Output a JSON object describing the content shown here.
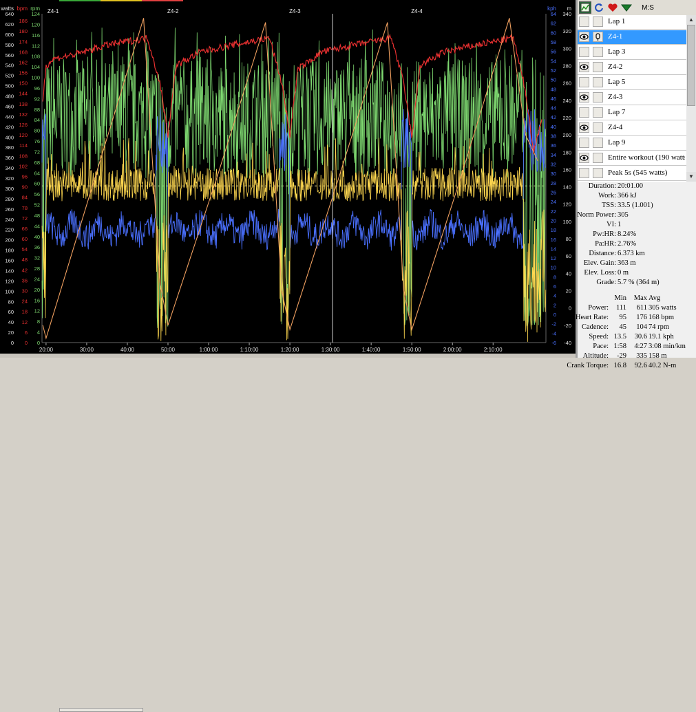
{
  "colors": {
    "watts": "#ffd850",
    "heart_rate": "#e83030",
    "cadence": "#7ed870",
    "speed": "#4a70ff",
    "elevation": "#f0a060",
    "axis_text": "#e0e0e0",
    "selection": "#3399ff"
  },
  "chart_data": {
    "type": "line",
    "x_label_format": "h:mm",
    "x_range_min": [
      19,
      2.3
    ],
    "x_ticks": [
      "20:00",
      "30:00",
      "40:00",
      "50:00",
      "1:00:00",
      "1:10:00",
      "1:20:00",
      "1:30:00",
      "1:40:00",
      "1:50:00",
      "2:00:00",
      "2:10:00"
    ],
    "interval_labels": [
      {
        "label": "Z4-1",
        "start_min": 20
      },
      {
        "label": "Z4-2",
        "start_min": 49.5
      },
      {
        "label": "Z4-3",
        "start_min": 79.5
      },
      {
        "label": "Z4-4",
        "start_min": 109.5
      }
    ],
    "cursor_min": 90.5,
    "reference_line": {
      "series": "watts",
      "value": 305
    },
    "axes": [
      {
        "id": "watts",
        "label": "watts",
        "side": "left",
        "min": 0,
        "max": 640,
        "step": 20
      },
      {
        "id": "bpm",
        "label": "bpm",
        "side": "left",
        "min": 0,
        "max": 190,
        "step": 6
      },
      {
        "id": "rpm",
        "label": "rpm",
        "side": "left",
        "min": 0,
        "max": 124,
        "step": 4
      },
      {
        "id": "kph",
        "label": "kph",
        "side": "right",
        "min": -6,
        "max": 64,
        "step": 2
      },
      {
        "id": "m",
        "label": "m",
        "side": "right",
        "min": -40,
        "max": 340,
        "step": 20
      }
    ],
    "series": [
      {
        "name": "Power",
        "axis": "watts",
        "note": "noisy ~305 W during intervals, dropping to ~0-100 W in recoveries"
      },
      {
        "name": "Heart Rate",
        "axis": "bpm",
        "x": [
          19.2,
          20,
          22,
          28,
          35,
          45,
          48,
          50,
          52,
          58,
          66,
          75,
          78,
          80,
          82,
          88,
          96,
          105,
          108,
          110,
          112,
          118,
          126,
          135,
          138,
          140,
          142
        ],
        "values": [
          140,
          160,
          164,
          167,
          172,
          176,
          150,
          120,
          160,
          168,
          172,
          176,
          150,
          120,
          158,
          168,
          172,
          176,
          150,
          118,
          160,
          168,
          172,
          176,
          145,
          110,
          130
        ]
      },
      {
        "name": "Cadence",
        "axis": "rpm",
        "note": "~90-104 rpm in intervals with high variability in recoveries"
      },
      {
        "name": "Speed",
        "axis": "kph",
        "note": "~13-20 kph while climbing, spikes to ~30 kph in recoveries"
      },
      {
        "name": "Altitude",
        "axis": "m",
        "x": [
          19.2,
          20,
          32,
          44,
          48,
          50,
          62,
          74,
          78,
          80,
          92,
          104,
          108,
          110,
          122,
          134,
          138,
          141
        ],
        "values": [
          -20,
          -35,
          150,
          335,
          30,
          -20,
          150,
          330,
          20,
          -25,
          150,
          330,
          20,
          -25,
          150,
          335,
          200,
          170
        ]
      }
    ]
  },
  "toolbar": {
    "label": "M:S"
  },
  "laps": [
    {
      "name": "Lap 1",
      "visible": false,
      "pinned": false,
      "selected": false
    },
    {
      "name": "Z4-1",
      "visible": true,
      "pinned": true,
      "selected": true
    },
    {
      "name": "Lap 3",
      "visible": false,
      "pinned": false,
      "selected": false
    },
    {
      "name": "Z4-2",
      "visible": true,
      "pinned": false,
      "selected": false
    },
    {
      "name": "Lap 5",
      "visible": false,
      "pinned": false,
      "selected": false
    },
    {
      "name": "Z4-3",
      "visible": true,
      "pinned": false,
      "selected": false
    },
    {
      "name": "Lap 7",
      "visible": false,
      "pinned": false,
      "selected": false
    },
    {
      "name": "Z4-4",
      "visible": true,
      "pinned": false,
      "selected": false
    },
    {
      "name": "Lap 9",
      "visible": false,
      "pinned": false,
      "selected": false
    },
    {
      "name": "Entire workout (190 watts",
      "visible": true,
      "pinned": false,
      "selected": false
    },
    {
      "name": "Peak 5s (545 watts)",
      "visible": false,
      "pinned": false,
      "selected": false
    }
  ],
  "stats": [
    {
      "key": "Duration:",
      "value": "20:01.00"
    },
    {
      "key": "Work:",
      "value": "366 kJ"
    },
    {
      "key": "TSS:",
      "value": "33.5 (1.001)"
    },
    {
      "key": "Norm Power:",
      "value": "305"
    },
    {
      "key": "VI:",
      "value": "1"
    },
    {
      "key": "Pw:HR:",
      "value": "8.24%"
    },
    {
      "key": "Pa:HR:",
      "value": "2.76%"
    },
    {
      "key": "Distance:",
      "value": "6.373 km"
    },
    {
      "key": "Elev. Gain:",
      "value": "363 m"
    },
    {
      "key": "Elev. Loss:",
      "value": "0 m"
    },
    {
      "key": "Grade:",
      "value": "5.7 % (364 m)"
    }
  ],
  "table": {
    "headers": [
      "Min",
      "Max",
      "Avg"
    ],
    "rows": [
      {
        "label": "Power:",
        "min": "111",
        "max": "611",
        "avg": "305 watts"
      },
      {
        "label": "Heart Rate:",
        "min": "95",
        "max": "176",
        "avg": "168 bpm"
      },
      {
        "label": "Cadence:",
        "min": "45",
        "max": "104",
        "avg": "74 rpm"
      },
      {
        "label": "Speed:",
        "min": "13.5",
        "max": "30.6",
        "avg": "19.1 kph"
      },
      {
        "label": "Pace:",
        "min": "1:58",
        "max": "4:27",
        "avg": "3:08 min/km"
      },
      {
        "label": "Altitude:",
        "min": "-29",
        "max": "335",
        "avg": "158 m"
      },
      {
        "label": "Crank Torque:",
        "min": "16.8",
        "max": "92.6",
        "avg": "40.2 N-m"
      }
    ]
  }
}
